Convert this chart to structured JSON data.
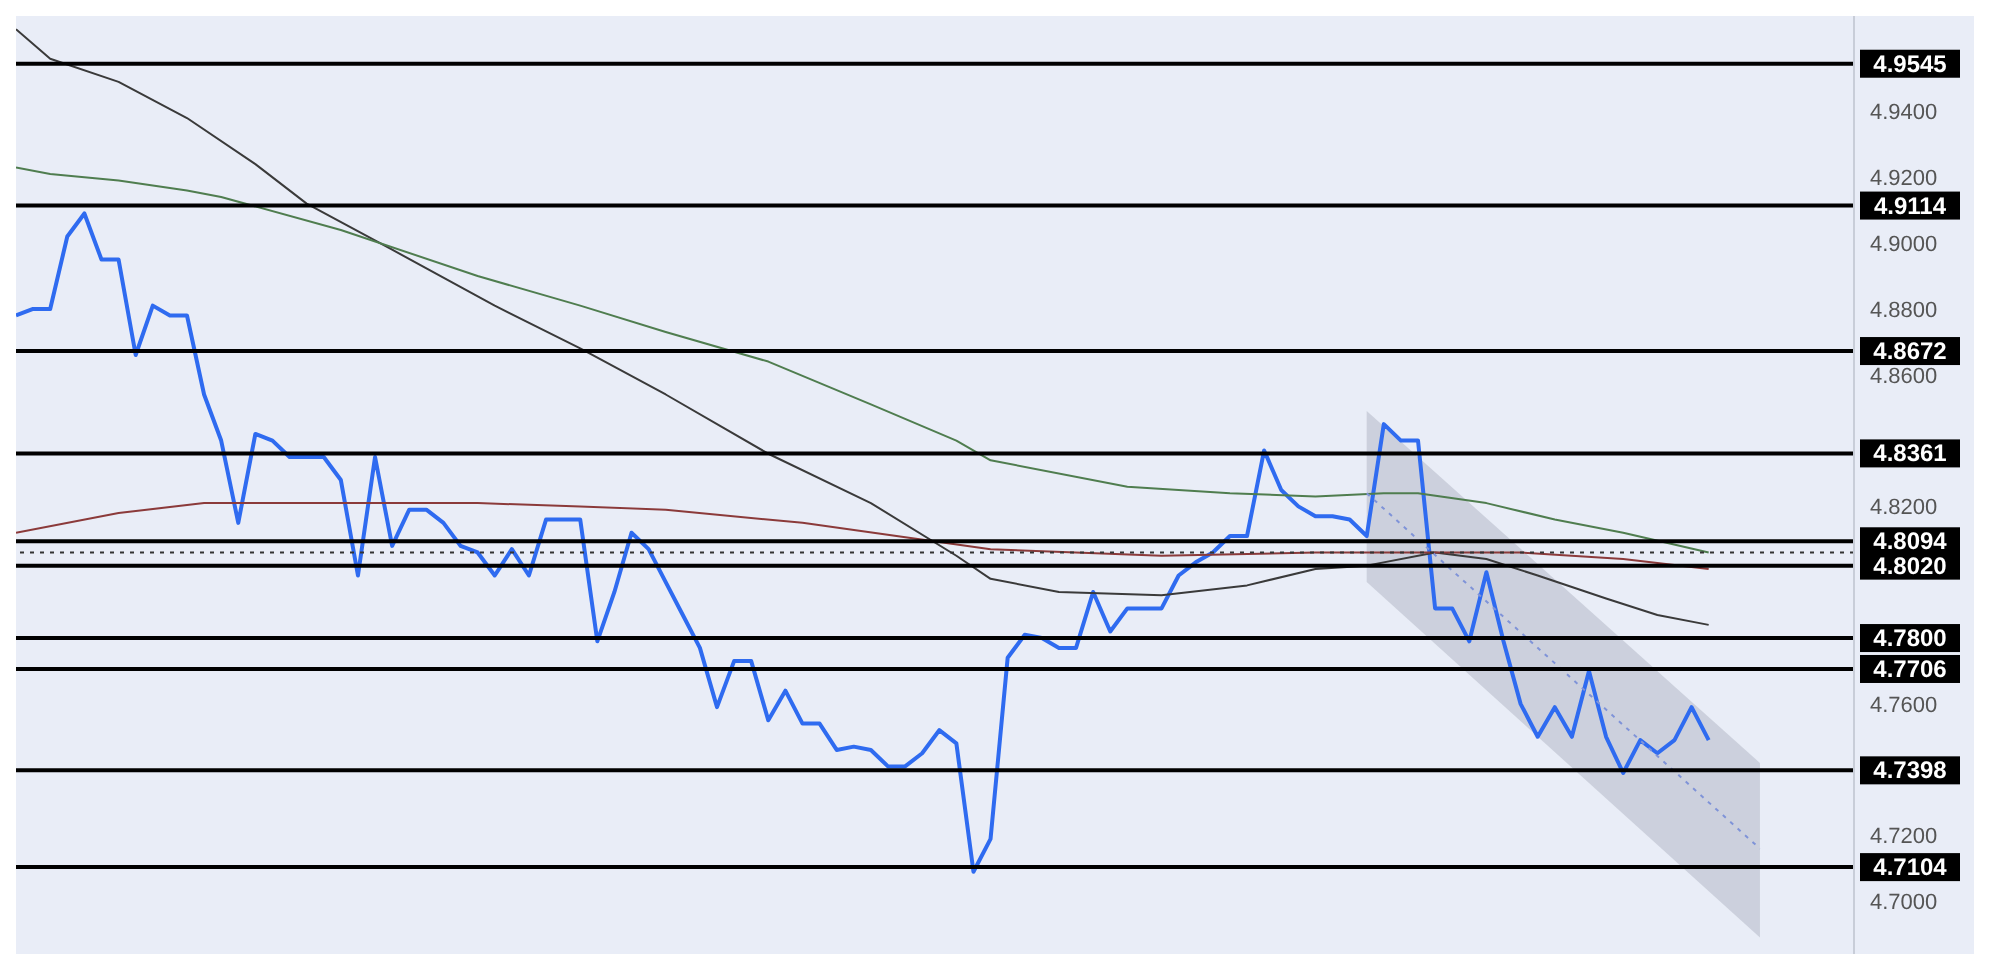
{
  "chart_data": {
    "type": "line",
    "tick_labels": "y",
    "legend": false,
    "grid": false,
    "categories": [
      null,
      null,
      null,
      null,
      null,
      null,
      null,
      null,
      null,
      null,
      null,
      null,
      null,
      null,
      null,
      null,
      null,
      null,
      null,
      null,
      null,
      null,
      null,
      null,
      null,
      null,
      null,
      null,
      null,
      null,
      null,
      null,
      null,
      null,
      null,
      null,
      null,
      null,
      null,
      null,
      null,
      null,
      null,
      null,
      null,
      null,
      null,
      null,
      null,
      null,
      null,
      null,
      null,
      null,
      null,
      null,
      null,
      null,
      null,
      null,
      null,
      null,
      null,
      null,
      null,
      null,
      null,
      null,
      null,
      null,
      null,
      null,
      null,
      null,
      null,
      null,
      null,
      null,
      null,
      null,
      null,
      null,
      null,
      null,
      null,
      null,
      null,
      null,
      null,
      null,
      null,
      null,
      null,
      null,
      null,
      null,
      null,
      null,
      null,
      null,
      null,
      null,
      null
    ],
    "ylim": [
      4.684,
      4.969
    ],
    "yticks": [
      {
        "value": 4.7,
        "label": "4.7000"
      },
      {
        "value": 4.72,
        "label": "4.7200"
      },
      {
        "value": 4.76,
        "label": "4.7600"
      },
      {
        "value": 4.82,
        "label": "4.8200"
      },
      {
        "value": 4.86,
        "label": "4.8600"
      },
      {
        "value": 4.88,
        "label": "4.8800"
      },
      {
        "value": 4.9,
        "label": "4.9000"
      },
      {
        "value": 4.92,
        "label": "4.9200"
      },
      {
        "value": 4.94,
        "label": "4.9400"
      }
    ],
    "series": [
      {
        "color": "#2f6bf0",
        "values": [
          4.878,
          4.88,
          4.88,
          4.902,
          4.909,
          4.895,
          4.895,
          4.866,
          4.881,
          4.878,
          4.878,
          4.854,
          4.84,
          4.815,
          4.842,
          4.84,
          4.835,
          4.835,
          4.835,
          4.828,
          4.799,
          4.835,
          4.808,
          4.819,
          4.819,
          4.815,
          4.808,
          4.806,
          4.799,
          4.807,
          4.799,
          4.816,
          4.816,
          4.816,
          4.779,
          4.794,
          4.812,
          4.807,
          4.797,
          4.787,
          4.777,
          4.759,
          4.773,
          4.773,
          4.755,
          4.764,
          4.754,
          4.754,
          4.746,
          4.747,
          4.746,
          4.741,
          4.741,
          4.745,
          4.752,
          4.748,
          4.709,
          4.719,
          4.774,
          4.781,
          4.78,
          4.777,
          4.777,
          4.794,
          4.782,
          4.789,
          4.789,
          4.789,
          4.799,
          4.803,
          4.806,
          4.811,
          4.811,
          4.837,
          4.825,
          4.82,
          4.817,
          4.817,
          4.816,
          4.811,
          4.845,
          4.84,
          4.84,
          4.789,
          4.789,
          4.779,
          4.8,
          4.779,
          4.76,
          4.75,
          4.759,
          4.75,
          4.77,
          4.75,
          4.739,
          4.749,
          4.745,
          4.749,
          4.759,
          4.749,
          null,
          null,
          null
        ]
      },
      {
        "color": "#3a3a3a",
        "values": [
          4.965,
          null,
          4.956,
          null,
          null,
          null,
          4.949,
          null,
          null,
          null,
          4.938,
          null,
          null,
          null,
          4.924,
          null,
          null,
          4.912,
          null,
          null,
          null,
          null,
          4.898,
          null,
          null,
          null,
          null,
          null,
          4.881,
          null,
          null,
          null,
          null,
          4.868,
          null,
          null,
          null,
          null,
          4.854,
          null,
          null,
          null,
          null,
          null,
          4.836,
          null,
          null,
          null,
          null,
          null,
          4.821,
          null,
          null,
          null,
          null,
          4.805,
          null,
          4.798,
          null,
          null,
          null,
          4.794,
          null,
          null,
          null,
          null,
          null,
          4.793,
          null,
          null,
          null,
          null,
          4.796,
          null,
          null,
          null,
          4.801,
          null,
          null,
          4.802,
          null,
          null,
          null,
          4.806,
          null,
          null,
          4.804,
          null,
          null,
          4.799,
          null,
          null,
          null,
          4.792,
          null,
          null,
          4.787,
          null,
          null,
          4.784,
          null,
          null,
          null
        ]
      },
      {
        "color": "#4f7d4f",
        "values": [
          4.923,
          null,
          4.921,
          null,
          null,
          null,
          4.919,
          null,
          null,
          null,
          4.916,
          null,
          4.914,
          null,
          null,
          null,
          null,
          null,
          null,
          4.904,
          null,
          null,
          null,
          null,
          null,
          null,
          null,
          4.89,
          null,
          null,
          null,
          null,
          null,
          4.881,
          null,
          null,
          null,
          null,
          4.873,
          null,
          null,
          null,
          null,
          null,
          4.864,
          null,
          null,
          null,
          null,
          null,
          4.851,
          null,
          null,
          null,
          null,
          4.84,
          null,
          4.834,
          null,
          null,
          null,
          null,
          null,
          null,
          null,
          4.826,
          null,
          null,
          null,
          null,
          null,
          4.824,
          null,
          null,
          null,
          null,
          4.823,
          null,
          null,
          null,
          4.824,
          null,
          4.824,
          null,
          null,
          null,
          4.821,
          null,
          null,
          null,
          4.816,
          null,
          null,
          null,
          4.812,
          null,
          null,
          null,
          null,
          4.806,
          null,
          null,
          null
        ]
      },
      {
        "color": "#8b3a3a",
        "values": [
          4.812,
          null,
          null,
          null,
          null,
          null,
          4.818,
          null,
          null,
          null,
          null,
          4.821,
          null,
          null,
          null,
          null,
          null,
          null,
          null,
          4.821,
          null,
          null,
          null,
          null,
          null,
          null,
          null,
          4.821,
          null,
          null,
          null,
          null,
          null,
          4.82,
          null,
          null,
          null,
          null,
          4.819,
          null,
          null,
          null,
          null,
          null,
          null,
          null,
          4.815,
          null,
          null,
          null,
          null,
          null,
          null,
          null,
          null,
          null,
          null,
          4.807,
          null,
          null,
          null,
          null,
          null,
          null,
          null,
          null,
          null,
          4.805,
          null,
          null,
          null,
          null,
          null,
          null,
          null,
          null,
          4.806,
          null,
          null,
          null,
          null,
          null,
          4.806,
          null,
          null,
          null,
          null,
          null,
          4.806,
          null,
          null,
          null,
          null,
          null,
          4.804,
          null,
          null,
          null,
          null,
          4.801,
          null,
          null,
          null
        ]
      },
      {
        "color": "#7f93d8",
        "line_style": "dotted",
        "values": [
          null,
          null,
          null,
          null,
          null,
          null,
          null,
          null,
          null,
          null,
          null,
          null,
          null,
          null,
          null,
          null,
          null,
          null,
          null,
          null,
          null,
          null,
          null,
          null,
          null,
          null,
          null,
          null,
          null,
          null,
          null,
          null,
          null,
          null,
          null,
          null,
          null,
          null,
          null,
          null,
          null,
          null,
          null,
          null,
          null,
          null,
          null,
          null,
          null,
          null,
          null,
          null,
          null,
          null,
          null,
          null,
          null,
          null,
          null,
          null,
          null,
          null,
          null,
          null,
          null,
          null,
          null,
          null,
          null,
          null,
          null,
          null,
          null,
          null,
          null,
          null,
          null,
          null,
          null,
          4.824,
          null,
          null,
          null,
          null,
          null,
          null,
          null,
          null,
          null,
          null,
          null,
          null,
          null,
          null,
          null,
          null,
          null,
          null,
          null,
          null,
          null,
          null,
          4.716
        ],
        "lower": [
          null,
          null,
          null,
          null,
          null,
          null,
          null,
          null,
          null,
          null,
          null,
          null,
          null,
          null,
          null,
          null,
          null,
          null,
          null,
          null,
          null,
          null,
          null,
          null,
          null,
          null,
          null,
          null,
          null,
          null,
          null,
          null,
          null,
          null,
          null,
          null,
          null,
          null,
          null,
          null,
          null,
          null,
          null,
          null,
          null,
          null,
          null,
          null,
          null,
          null,
          null,
          null,
          null,
          null,
          null,
          null,
          null,
          null,
          null,
          null,
          null,
          null,
          null,
          null,
          null,
          null,
          null,
          null,
          null,
          null,
          null,
          null,
          null,
          null,
          null,
          null,
          null,
          null,
          null,
          4.797,
          null,
          null,
          null,
          null,
          null,
          null,
          null,
          null,
          null,
          null,
          null,
          null,
          null,
          null,
          null,
          null,
          null,
          null,
          null,
          null,
          null,
          null,
          4.689
        ],
        "upper": [
          null,
          null,
          null,
          null,
          null,
          null,
          null,
          null,
          null,
          null,
          null,
          null,
          null,
          null,
          null,
          null,
          null,
          null,
          null,
          null,
          null,
          null,
          null,
          null,
          null,
          null,
          null,
          null,
          null,
          null,
          null,
          null,
          null,
          null,
          null,
          null,
          null,
          null,
          null,
          null,
          null,
          null,
          null,
          null,
          null,
          null,
          null,
          null,
          null,
          null,
          null,
          null,
          null,
          null,
          null,
          null,
          null,
          null,
          null,
          null,
          null,
          null,
          null,
          null,
          null,
          null,
          null,
          null,
          null,
          null,
          null,
          null,
          null,
          null,
          null,
          null,
          null,
          null,
          null,
          4.849,
          null,
          null,
          null,
          null,
          null,
          null,
          null,
          null,
          null,
          null,
          null,
          null,
          null,
          null,
          null,
          null,
          null,
          null,
          null,
          null,
          null,
          null,
          4.742
        ]
      }
    ],
    "ref_lines": [
      {
        "axis": "y",
        "value": 4.9545,
        "label": "4.9545",
        "color": "#000000"
      },
      {
        "axis": "y",
        "value": 4.9114,
        "label": "4.9114",
        "color": "#000000"
      },
      {
        "axis": "y",
        "value": 4.8672,
        "label": "4.8672",
        "color": "#000000"
      },
      {
        "axis": "y",
        "value": 4.8361,
        "label": "4.8361",
        "color": "#000000"
      },
      {
        "axis": "y",
        "value": 4.8094,
        "label": "4.8094",
        "color": "#000000"
      },
      {
        "axis": "y",
        "value": 4.802,
        "label": "4.8020",
        "color": "#000000"
      },
      {
        "axis": "y",
        "value": 4.78,
        "label": "4.7800",
        "color": "#000000"
      },
      {
        "axis": "y",
        "value": 4.7706,
        "label": "4.7706",
        "color": "#000000"
      },
      {
        "axis": "y",
        "value": 4.7398,
        "label": "4.7398",
        "color": "#000000"
      },
      {
        "axis": "y",
        "value": 4.7104,
        "label": "4.7104",
        "color": "#000000"
      },
      {
        "axis": "y",
        "value": 4.806,
        "color": "#333333",
        "line_style": "dotted"
      }
    ]
  }
}
